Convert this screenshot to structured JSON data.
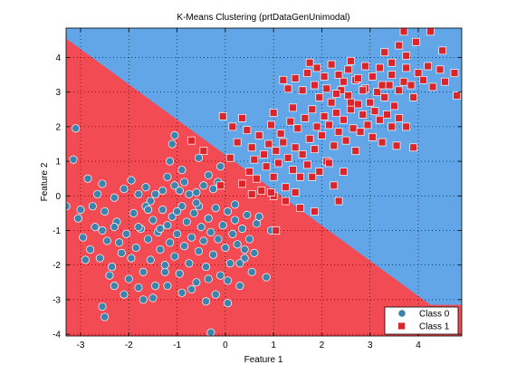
{
  "chart_data": {
    "type": "scatter",
    "title": "K-Means Clustering (prtDataGenUnimodal)",
    "xlabel": "Feature 1",
    "ylabel": "Feature 2",
    "xlim": [
      -3.3,
      4.9
    ],
    "ylim": [
      -4.05,
      4.85
    ],
    "xticks": [
      -3,
      -2,
      -1,
      0,
      1,
      2,
      3,
      4
    ],
    "yticks": [
      -4,
      -3,
      -2,
      -1,
      0,
      1,
      2,
      3,
      4
    ],
    "grid": true,
    "legend_position": "bottom-right",
    "decision_regions": {
      "boundary": {
        "points": [
          [
            -3.3,
            4.55
          ],
          [
            4.25,
            -3.15
          ],
          [
            4.9,
            -3.15
          ]
        ]
      },
      "upper_right_color": "#62a6e8",
      "lower_left_color": "#f34b53"
    },
    "series": [
      {
        "name": "Class 0",
        "marker": "circle",
        "color": "#3d84ad",
        "points": [
          [
            -3.1,
            1.95
          ],
          [
            -3.15,
            1.05
          ],
          [
            -2.85,
            0.5
          ],
          [
            -2.65,
            0.05
          ],
          [
            -2.55,
            0.35
          ],
          [
            -2.3,
            -0.05
          ],
          [
            -2.1,
            0.2
          ],
          [
            -1.95,
            0.45
          ],
          [
            -1.8,
            0.05
          ],
          [
            -1.65,
            0.25
          ],
          [
            -1.55,
            -0.15
          ],
          [
            -1.45,
            0.05
          ],
          [
            -1.3,
            0.15
          ],
          [
            -1.2,
            0.55
          ],
          [
            -1.05,
            0.3
          ],
          [
            -0.95,
            0.15
          ],
          [
            -0.85,
            0.4
          ],
          [
            -0.75,
            0.05
          ],
          [
            -0.6,
            0.1
          ],
          [
            -0.45,
            0.3
          ],
          [
            -0.35,
            0.6
          ],
          [
            -0.25,
            0.2
          ],
          [
            -0.15,
            0.4
          ],
          [
            -3.3,
            -0.3
          ],
          [
            -3.05,
            -0.65
          ],
          [
            -2.95,
            -1.2
          ],
          [
            -2.8,
            -1.55
          ],
          [
            -2.7,
            -0.9
          ],
          [
            -2.6,
            -1.8
          ],
          [
            -2.5,
            -0.45
          ],
          [
            -2.45,
            -1.3
          ],
          [
            -2.35,
            -2.05
          ],
          [
            -2.25,
            -0.75
          ],
          [
            -2.15,
            -1.65
          ],
          [
            -2.05,
            -1.1
          ],
          [
            -2.0,
            -2.4
          ],
          [
            -1.9,
            -0.5
          ],
          [
            -1.85,
            -1.5
          ],
          [
            -1.75,
            -0.95
          ],
          [
            -1.7,
            -2.2
          ],
          [
            -1.6,
            -1.25
          ],
          [
            -1.55,
            -1.85
          ],
          [
            -1.5,
            -0.7
          ],
          [
            -1.45,
            -2.6
          ],
          [
            -1.4,
            -1.05
          ],
          [
            -1.35,
            -1.55
          ],
          [
            -1.3,
            -0.4
          ],
          [
            -1.25,
            -2.0
          ],
          [
            -1.2,
            -0.85
          ],
          [
            -1.15,
            -1.35
          ],
          [
            -1.1,
            -0.6
          ],
          [
            -1.05,
            -1.75
          ],
          [
            -1.0,
            -1.1
          ],
          [
            -0.95,
            -2.25
          ],
          [
            -0.9,
            -0.3
          ],
          [
            -0.85,
            -1.45
          ],
          [
            -0.8,
            -0.75
          ],
          [
            -0.75,
            -1.95
          ],
          [
            -0.7,
            -1.2
          ],
          [
            -0.65,
            -0.5
          ],
          [
            -0.6,
            -2.5
          ],
          [
            -0.55,
            -1.6
          ],
          [
            -0.5,
            -0.9
          ],
          [
            -0.45,
            -1.3
          ],
          [
            -0.4,
            -2.05
          ],
          [
            -0.35,
            -0.65
          ],
          [
            -0.3,
            -1.05
          ],
          [
            -0.25,
            -1.7
          ],
          [
            -0.2,
            -0.35
          ],
          [
            -0.15,
            -1.25
          ],
          [
            -0.1,
            -2.3
          ],
          [
            -0.05,
            -0.85
          ],
          [
            0.0,
            -1.5
          ],
          [
            0.05,
            -0.45
          ],
          [
            0.1,
            -1.95
          ],
          [
            0.15,
            -1.1
          ],
          [
            0.2,
            -0.7
          ],
          [
            0.25,
            -1.4
          ],
          [
            0.3,
            -2.6
          ],
          [
            0.35,
            -0.95
          ],
          [
            0.4,
            -1.8
          ],
          [
            0.45,
            -0.55
          ],
          [
            0.5,
            -1.25
          ],
          [
            0.55,
            -2.2
          ],
          [
            0.6,
            -1.65
          ],
          [
            0.65,
            -0.8
          ],
          [
            -3.0,
            -0.4
          ],
          [
            -2.9,
            -1.85
          ],
          [
            -2.75,
            -0.3
          ],
          [
            -2.55,
            -1.0
          ],
          [
            -2.4,
            -2.3
          ],
          [
            -2.2,
            -1.35
          ],
          [
            -2.1,
            -2.85
          ],
          [
            -1.95,
            -1.8
          ],
          [
            -1.8,
            -2.65
          ],
          [
            -1.65,
            -0.3
          ],
          [
            -1.5,
            -2.95
          ],
          [
            -1.35,
            -0.95
          ],
          [
            -1.2,
            -2.6
          ],
          [
            -1.0,
            -0.45
          ],
          [
            -0.9,
            -2.8
          ],
          [
            -0.7,
            -2.7
          ],
          [
            -0.55,
            -0.3
          ],
          [
            -0.35,
            -2.4
          ],
          [
            -0.2,
            -2.85
          ],
          [
            0.05,
            -2.45
          ],
          [
            0.2,
            -0.25
          ],
          [
            0.4,
            -1.55
          ],
          [
            0.7,
            -0.6
          ],
          [
            0.85,
            -2.35
          ],
          [
            0.95,
            -1.0
          ],
          [
            -2.55,
            -3.2
          ],
          [
            -2.5,
            -3.5
          ],
          [
            -2.3,
            -2.6
          ],
          [
            -1.7,
            -3.0
          ],
          [
            -1.25,
            -2.2
          ],
          [
            -0.4,
            -3.05
          ],
          [
            -0.3,
            -3.95
          ],
          [
            0.05,
            -3.1
          ],
          [
            0.3,
            -1.95
          ],
          [
            -0.1,
            0.85
          ],
          [
            -0.55,
            1.1
          ],
          [
            -1.15,
            1.0
          ],
          [
            -1.1,
            1.5
          ],
          [
            -1.05,
            1.75
          ],
          [
            -0.9,
            0.75
          ],
          [
            -0.6,
            -0.2
          ],
          [
            -1.6,
            -0.4
          ],
          [
            -2.3,
            -0.9
          ],
          [
            -1.8,
            -0.9
          ]
        ]
      },
      {
        "name": "Class 1",
        "marker": "square",
        "color": "#d9252b",
        "points": [
          [
            -0.7,
            1.6
          ],
          [
            -0.45,
            1.3
          ],
          [
            -0.1,
            0.3
          ],
          [
            0.35,
            0.35
          ],
          [
            0.5,
            0.7
          ],
          [
            0.55,
            1.4
          ],
          [
            0.6,
            1.05
          ],
          [
            0.65,
            0.5
          ],
          [
            0.7,
            1.75
          ],
          [
            0.8,
            1.2
          ],
          [
            0.85,
            0.85
          ],
          [
            0.9,
            1.5
          ],
          [
            0.95,
            2.05
          ],
          [
            1.0,
            0.55
          ],
          [
            1.05,
            1.3
          ],
          [
            1.1,
            0.95
          ],
          [
            1.15,
            1.8
          ],
          [
            1.2,
            1.55
          ],
          [
            1.25,
            0.25
          ],
          [
            1.3,
            1.1
          ],
          [
            1.35,
            2.15
          ],
          [
            1.4,
            0.75
          ],
          [
            1.45,
            1.4
          ],
          [
            1.5,
            1.95
          ],
          [
            0.1,
            1.1
          ],
          [
            0.25,
            1.55
          ],
          [
            -0.05,
            2.3
          ],
          [
            0.35,
            2.25
          ],
          [
            0.15,
            2.0
          ],
          [
            0.45,
            1.9
          ],
          [
            0.55,
            0.05
          ],
          [
            0.75,
            0.15
          ],
          [
            1.0,
            0.0
          ],
          [
            1.25,
            -0.15
          ],
          [
            1.45,
            0.1
          ],
          [
            1.55,
            0.55
          ],
          [
            1.6,
            1.2
          ],
          [
            1.65,
            2.25
          ],
          [
            1.7,
            0.9
          ],
          [
            1.75,
            1.65
          ],
          [
            1.8,
            2.5
          ],
          [
            1.85,
            1.35
          ],
          [
            1.9,
            2.0
          ],
          [
            1.95,
            0.7
          ],
          [
            2.0,
            1.75
          ],
          [
            2.05,
            2.3
          ],
          [
            2.1,
            1.0
          ],
          [
            2.15,
            2.05
          ],
          [
            2.2,
            2.7
          ],
          [
            2.25,
            1.45
          ],
          [
            2.3,
            2.4
          ],
          [
            2.35,
            1.85
          ],
          [
            2.4,
            3.05
          ],
          [
            2.45,
            2.2
          ],
          [
            2.5,
            1.6
          ],
          [
            2.55,
            2.9
          ],
          [
            2.6,
            2.5
          ],
          [
            2.65,
            1.95
          ],
          [
            2.7,
            3.35
          ],
          [
            2.75,
            2.65
          ],
          [
            2.8,
            1.85
          ],
          [
            2.85,
            2.35
          ],
          [
            2.9,
            3.1
          ],
          [
            2.95,
            2.05
          ],
          [
            3.0,
            2.7
          ],
          [
            3.05,
            1.7
          ],
          [
            3.1,
            2.45
          ],
          [
            3.15,
            3.0
          ],
          [
            3.2,
            2.2
          ],
          [
            3.25,
            1.55
          ],
          [
            3.3,
            2.85
          ],
          [
            3.35,
            2.35
          ],
          [
            3.4,
            3.2
          ],
          [
            3.45,
            2.0
          ],
          [
            3.5,
            2.6
          ],
          [
            3.55,
            1.45
          ],
          [
            3.6,
            2.25
          ],
          [
            1.2,
            3.35
          ],
          [
            1.3,
            3.1
          ],
          [
            1.45,
            3.4
          ],
          [
            1.6,
            3.05
          ],
          [
            1.7,
            3.55
          ],
          [
            1.75,
            3.85
          ],
          [
            1.85,
            3.2
          ],
          [
            1.9,
            3.7
          ],
          [
            1.95,
            2.85
          ],
          [
            2.05,
            3.45
          ],
          [
            2.1,
            3.1
          ],
          [
            2.2,
            3.8
          ],
          [
            2.3,
            2.95
          ],
          [
            2.35,
            3.5
          ],
          [
            2.45,
            3.3
          ],
          [
            2.55,
            3.65
          ],
          [
            2.6,
            2.7
          ],
          [
            2.75,
            3.4
          ],
          [
            2.85,
            3.05
          ],
          [
            3.05,
            3.45
          ],
          [
            3.2,
            3.7
          ],
          [
            3.25,
            3.2
          ],
          [
            3.45,
            3.5
          ],
          [
            3.6,
            3.05
          ],
          [
            3.7,
            3.3
          ],
          [
            3.75,
            3.7
          ],
          [
            3.85,
            3.2
          ],
          [
            3.9,
            2.85
          ],
          [
            4.0,
            3.55
          ],
          [
            4.1,
            3.35
          ],
          [
            4.2,
            3.75
          ],
          [
            4.3,
            3.15
          ],
          [
            4.45,
            3.65
          ],
          [
            4.55,
            3.3
          ],
          [
            4.8,
            2.9
          ],
          [
            3.3,
            4.15
          ],
          [
            3.45,
            3.85
          ],
          [
            3.6,
            4.35
          ],
          [
            3.75,
            4.05
          ],
          [
            3.95,
            4.45
          ],
          [
            4.25,
            4.75
          ],
          [
            4.5,
            4.2
          ],
          [
            4.75,
            3.55
          ],
          [
            3.7,
            4.75
          ],
          [
            2.9,
            3.75
          ],
          [
            2.6,
            3.9
          ],
          [
            2.45,
            0.7
          ],
          [
            2.35,
            -0.15
          ],
          [
            1.85,
            -0.45
          ],
          [
            1.55,
            -0.35
          ],
          [
            1.05,
            -1.0
          ],
          [
            0.95,
            0.1
          ],
          [
            2.15,
            0.95
          ],
          [
            2.7,
            1.3
          ],
          [
            1.8,
            0.55
          ],
          [
            2.25,
            0.3
          ],
          [
            3.75,
            2.0
          ],
          [
            3.9,
            1.4
          ],
          [
            1.4,
            2.55
          ],
          [
            1.0,
            2.4
          ]
        ]
      }
    ]
  }
}
